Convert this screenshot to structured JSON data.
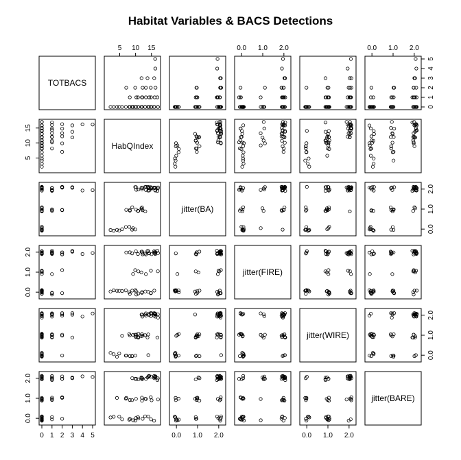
{
  "chart_data": {
    "type": "scatter",
    "title": "Habitat Variables & BACS Detections",
    "variables": [
      "TOTBACS",
      "HabQIndex",
      "jitter(BA)",
      "jitter(FIRE)",
      "jitter(WIRE)",
      "jitter(BARE)"
    ],
    "axes": [
      {
        "name": "TOTBACS",
        "range": [
          0,
          5
        ],
        "ticks": [
          0,
          1,
          2,
          3,
          4,
          5
        ],
        "tick_labels": [
          "0",
          "1",
          "2",
          "3",
          "4",
          "5"
        ]
      },
      {
        "name": "HabQIndex",
        "range": [
          1,
          17
        ],
        "ticks": [
          5,
          10,
          15
        ],
        "tick_labels": [
          "5",
          "10",
          "15"
        ]
      },
      {
        "name": "jitter(BA)",
        "range": [
          -0.2,
          2.2
        ],
        "ticks": [
          0,
          1,
          2
        ],
        "tick_labels": [
          "0.0",
          "1.0",
          "2.0"
        ]
      },
      {
        "name": "jitter(FIRE)",
        "range": [
          -0.2,
          2.2
        ],
        "ticks": [
          0,
          1,
          2
        ],
        "tick_labels": [
          "0.0",
          "1.0",
          "2.0"
        ]
      },
      {
        "name": "jitter(WIRE)",
        "range": [
          -0.2,
          2.2
        ],
        "ticks": [
          0,
          1,
          2
        ],
        "tick_labels": [
          "0.0",
          "1.0",
          "2.0"
        ]
      },
      {
        "name": "jitter(BARE)",
        "range": [
          -0.2,
          2.2
        ],
        "ticks": [
          0,
          1,
          2
        ],
        "tick_labels": [
          "0.0",
          "1.0",
          "2.0"
        ]
      }
    ],
    "observations": [
      [
        0,
        2,
        0,
        0,
        0,
        0
      ],
      [
        0,
        3,
        0,
        0,
        0,
        0
      ],
      [
        0,
        4,
        0,
        0,
        0,
        1
      ],
      [
        0,
        5,
        0,
        0,
        0,
        0
      ],
      [
        0,
        6,
        0,
        0,
        1,
        0
      ],
      [
        0,
        7,
        0,
        0,
        0,
        1
      ],
      [
        0,
        8,
        1,
        0,
        0,
        0
      ],
      [
        0,
        8,
        0,
        0,
        1,
        0
      ],
      [
        0,
        9,
        1,
        0,
        0,
        2
      ],
      [
        0,
        9,
        0,
        1,
        1,
        0
      ],
      [
        0,
        10,
        1,
        0,
        1,
        1
      ],
      [
        0,
        10,
        0,
        0,
        0,
        0
      ],
      [
        0,
        11,
        1,
        1,
        1,
        2
      ],
      [
        0,
        11,
        2,
        0,
        1,
        0
      ],
      [
        0,
        12,
        1,
        2,
        1,
        1
      ],
      [
        0,
        12,
        2,
        0,
        2,
        2
      ],
      [
        0,
        13,
        2,
        2,
        1,
        0
      ],
      [
        0,
        13,
        1,
        0,
        2,
        1
      ],
      [
        0,
        14,
        2,
        2,
        2,
        2
      ],
      [
        0,
        14,
        2,
        0,
        1,
        0
      ],
      [
        0,
        15,
        2,
        2,
        2,
        1
      ],
      [
        0,
        15,
        2,
        1,
        2,
        2
      ],
      [
        0,
        16,
        2,
        2,
        2,
        0
      ],
      [
        0,
        16,
        2,
        0,
        2,
        2
      ],
      [
        0,
        17,
        2,
        2,
        2,
        1
      ],
      [
        0,
        17,
        2,
        1,
        2,
        2
      ],
      [
        0,
        10,
        2,
        2,
        1,
        0
      ],
      [
        0,
        12,
        1,
        1,
        1,
        2
      ],
      [
        0,
        9,
        0,
        2,
        0,
        1
      ],
      [
        0,
        14,
        2,
        2,
        0,
        2
      ],
      [
        1,
        8,
        1,
        2,
        1,
        1
      ],
      [
        1,
        10,
        2,
        0,
        1,
        2
      ],
      [
        1,
        11,
        1,
        2,
        1,
        0
      ],
      [
        1,
        12,
        2,
        2,
        2,
        2
      ],
      [
        1,
        13,
        2,
        1,
        2,
        1
      ],
      [
        1,
        14,
        2,
        2,
        2,
        2
      ],
      [
        1,
        15,
        2,
        0,
        2,
        0
      ],
      [
        1,
        16,
        2,
        2,
        2,
        2
      ],
      [
        1,
        17,
        2,
        2,
        1,
        2
      ],
      [
        1,
        12,
        1,
        0,
        1,
        1
      ],
      [
        2,
        7,
        1,
        2,
        0,
        1
      ],
      [
        2,
        10,
        2,
        1,
        1,
        2
      ],
      [
        2,
        12,
        1,
        2,
        1,
        0
      ],
      [
        2,
        13,
        2,
        2,
        2,
        2
      ],
      [
        2,
        15,
        2,
        0,
        2,
        1
      ],
      [
        2,
        16,
        2,
        2,
        2,
        2
      ],
      [
        3,
        12,
        2,
        2,
        2,
        2
      ],
      [
        3,
        14,
        2,
        2,
        1,
        2
      ],
      [
        3,
        16,
        2,
        2,
        2,
        2
      ],
      [
        4,
        16,
        2,
        2,
        2,
        2
      ],
      [
        5,
        16,
        2,
        2,
        2,
        2
      ]
    ],
    "jitter_amount": 0.12,
    "grid": false,
    "legend": "none"
  }
}
